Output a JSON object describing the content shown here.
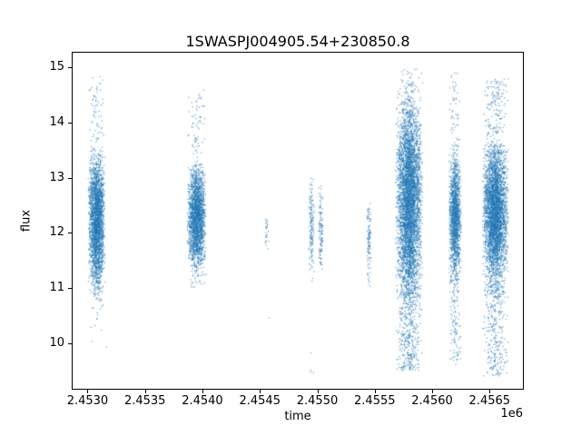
{
  "chart_data": {
    "type": "scatter",
    "title": "1SWASPJ004905.54+230850.8",
    "xlabel": "time",
    "ylabel": "flux",
    "x_offset_label": "1e6",
    "xlim": [
      2452870,
      2456790
    ],
    "ylim": [
      9.17,
      15.27
    ],
    "xticks": [
      2453000,
      2453500,
      2454000,
      2454500,
      2455000,
      2455500,
      2456000,
      2456500
    ],
    "xtick_labels": [
      "2.4530",
      "2.4535",
      "2.4540",
      "2.4545",
      "2.4550",
      "2.4555",
      "2.4560",
      "2.4565"
    ],
    "yticks": [
      10,
      11,
      12,
      13,
      14,
      15
    ],
    "ytick_labels": [
      "10",
      "11",
      "12",
      "13",
      "14",
      "15"
    ],
    "grid": false,
    "legend": null,
    "marker_color": "#1f77b4",
    "marker_alpha": 0.6,
    "marker_size": 1.3,
    "axes_color": "#000000",
    "background_color": "#ffffff",
    "clusters": [
      {
        "x_center": 2453080,
        "x_spread": 75,
        "count": 2600,
        "flux_mean": 12.2,
        "flux_sigma": 0.6,
        "flux_min": 10.6,
        "flux_max": 13.55,
        "outliers": [
          {
            "frac": 0.025,
            "min": 13.55,
            "max": 14.85
          },
          {
            "frac": 0.004,
            "min": 9.9,
            "max": 10.6
          }
        ]
      },
      {
        "x_center": 2453950,
        "x_spread": 85,
        "count": 2200,
        "flux_mean": 12.3,
        "flux_sigma": 0.48,
        "flux_min": 11.0,
        "flux_max": 13.25,
        "outliers": [
          {
            "frac": 0.03,
            "min": 13.25,
            "max": 14.6
          }
        ]
      },
      {
        "x_center": 2454560,
        "x_spread": 20,
        "count": 25,
        "flux_mean": 12.05,
        "flux_sigma": 0.18,
        "flux_min": 11.7,
        "flux_max": 12.35,
        "outliers": []
      },
      {
        "x_center": 2454950,
        "x_spread": 25,
        "count": 160,
        "flux_mean": 12.15,
        "flux_sigma": 0.45,
        "flux_min": 11.1,
        "flux_max": 13.0,
        "outliers": [
          {
            "frac": 0.02,
            "min": 9.4,
            "max": 10.2
          }
        ]
      },
      {
        "x_center": 2455030,
        "x_spread": 20,
        "count": 120,
        "flux_mean": 12.0,
        "flux_sigma": 0.4,
        "flux_min": 11.3,
        "flux_max": 12.85,
        "outliers": []
      },
      {
        "x_center": 2455450,
        "x_spread": 22,
        "count": 110,
        "flux_mean": 11.85,
        "flux_sigma": 0.42,
        "flux_min": 10.8,
        "flux_max": 12.55,
        "outliers": []
      },
      {
        "x_center": 2455800,
        "x_spread": 120,
        "count": 5000,
        "flux_mean": 12.65,
        "flux_sigma": 0.85,
        "flux_min": 10.8,
        "flux_max": 15.05,
        "outliers": [
          {
            "frac": 0.13,
            "min": 9.5,
            "max": 11.8
          }
        ]
      },
      {
        "x_center": 2456200,
        "x_spread": 55,
        "count": 1700,
        "flux_mean": 12.3,
        "flux_sigma": 0.55,
        "flux_min": 10.9,
        "flux_max": 13.6,
        "outliers": [
          {
            "frac": 0.03,
            "min": 13.6,
            "max": 14.9
          },
          {
            "frac": 0.05,
            "min": 9.6,
            "max": 11.0
          }
        ]
      },
      {
        "x_center": 2456550,
        "x_spread": 115,
        "count": 4200,
        "flux_mean": 12.35,
        "flux_sigma": 0.65,
        "flux_min": 10.8,
        "flux_max": 13.6,
        "outliers": [
          {
            "frac": 0.04,
            "min": 13.6,
            "max": 14.8
          },
          {
            "frac": 0.07,
            "min": 9.4,
            "max": 11.0
          }
        ]
      }
    ],
    "single_points": [
      [
        2453165,
        9.93
      ],
      [
        2454580,
        10.45
      ]
    ]
  }
}
